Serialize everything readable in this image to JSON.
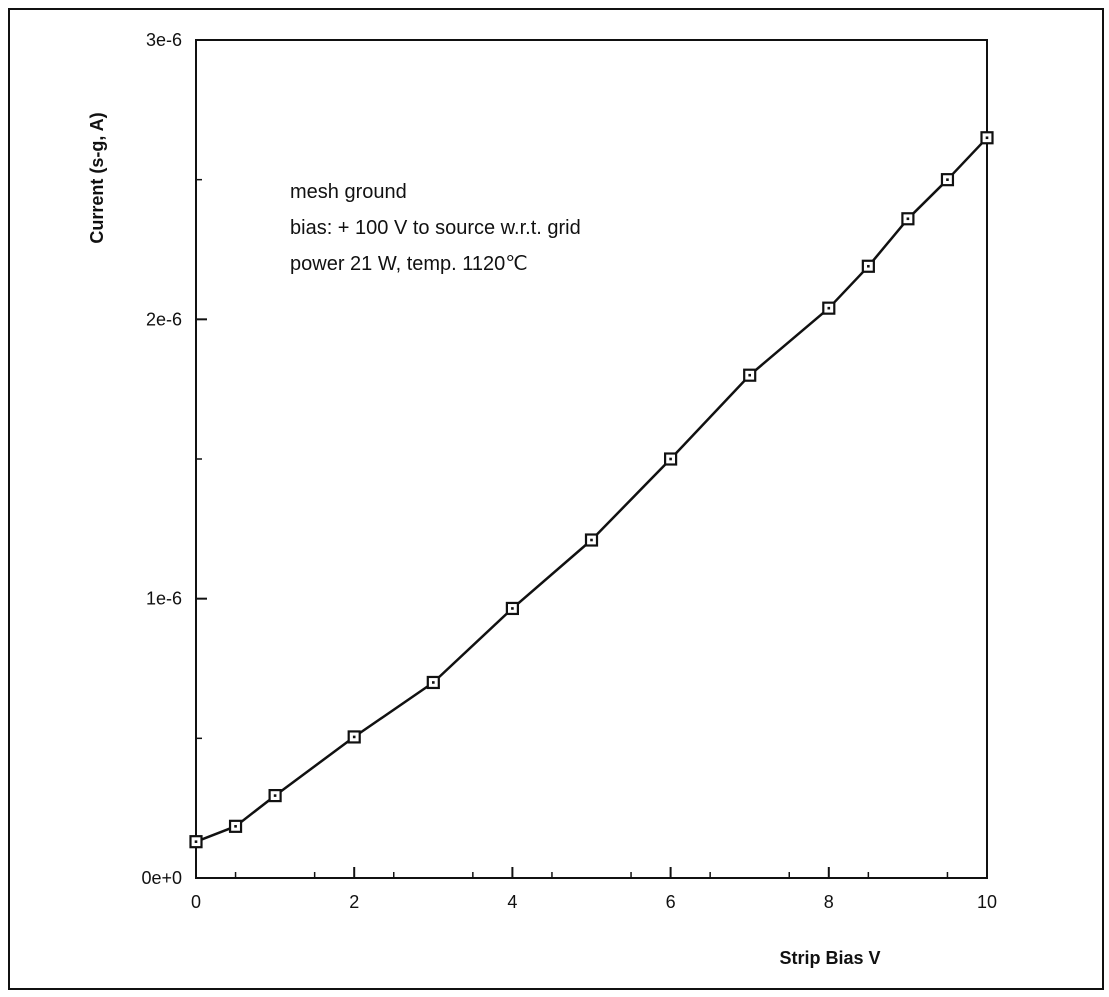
{
  "chart_data": {
    "type": "line",
    "title": "",
    "xlabel": "Strip Bias V",
    "ylabel": "Current   (s-g,   A)",
    "xlim": [
      0,
      10
    ],
    "ylim": [
      0,
      3e-06
    ],
    "x_ticks": [
      0,
      2,
      4,
      6,
      8,
      10
    ],
    "x_tick_labels": [
      "0",
      "2",
      "4",
      "6",
      "8",
      "10"
    ],
    "y_ticks": [
      0,
      1e-06,
      2e-06,
      3e-06
    ],
    "y_tick_labels": [
      "0e+0",
      "1e-6",
      "2e-6",
      "3e-6"
    ],
    "grid": false,
    "marker": "square-with-dot",
    "annotations": [
      "mesh ground",
      "bias: + 100 V to source w.r.t. grid",
      "power 21 W, temp. 1120℃"
    ],
    "series": [
      {
        "x": [
          0.0,
          0.5,
          1.0,
          2.0,
          3.0,
          4.0,
          5.0,
          6.0,
          7.0,
          8.0,
          8.5,
          9.0,
          9.5,
          10.0
        ],
        "y": [
          1.3e-07,
          1.85e-07,
          2.95e-07,
          5.05e-07,
          7e-07,
          9.65e-07,
          1.21e-06,
          1.5e-06,
          1.8e-06,
          2.04e-06,
          2.19e-06,
          2.36e-06,
          2.5e-06,
          2.65e-06
        ]
      }
    ]
  }
}
